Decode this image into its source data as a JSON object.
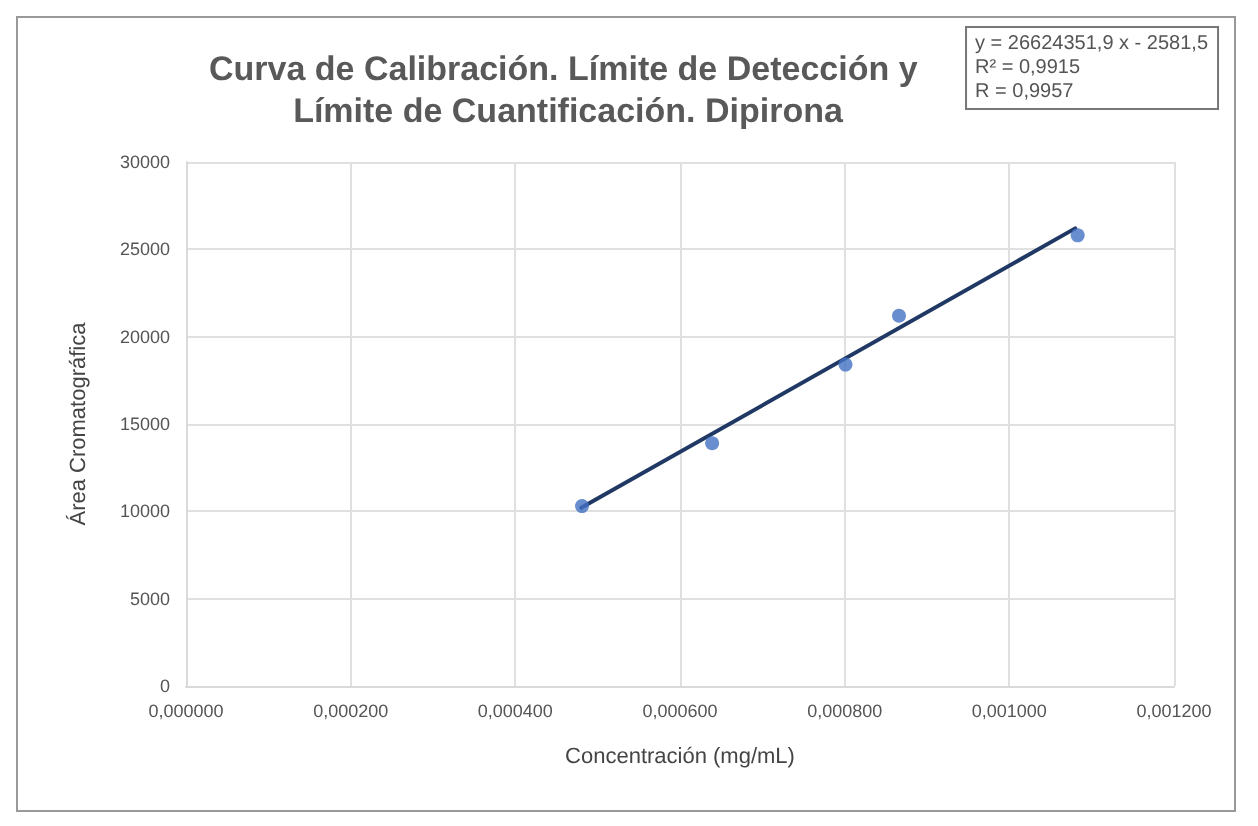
{
  "chart_data": {
    "type": "scatter",
    "title": "Curva de Calibración. Límite de Detección y Límite de Cuantificación. Dipirona",
    "xlabel": "Concentración (mg/mL)",
    "ylabel": "Área Cromatográfica",
    "annotations": [
      "y = 26624351,9 x - 2581,5",
      "R² = 0,9915",
      "R = 0,9957"
    ],
    "x": [
      0.000481,
      0.000639,
      0.000801,
      0.000866,
      0.001083
    ],
    "series": [
      {
        "color": "#4472c4",
        "values": [
          10300,
          13900,
          18400,
          21200,
          25800
        ]
      },
      {
        "type": "line",
        "color": "#203864",
        "x": [
          0.00048,
          0.00108
        ],
        "values": [
          10200,
          26200
        ],
        "marker": "none"
      }
    ],
    "marker": "circle",
    "grid": true,
    "xlim": [
      0,
      0.0012
    ],
    "xticks": [
      {
        "value": 0,
        "label": "0,000000"
      },
      {
        "value": 0.0002,
        "label": "0,000200"
      },
      {
        "value": 0.0004,
        "label": "0,000400"
      },
      {
        "value": 0.0006,
        "label": "0,000600"
      },
      {
        "value": 0.0008,
        "label": "0,000800"
      },
      {
        "value": 0.001,
        "label": "0,001000"
      },
      {
        "value": 0.0012,
        "label": "0,001200"
      }
    ],
    "ylim": [
      0,
      30000
    ],
    "yticks": [
      0,
      5000,
      10000,
      15000,
      20000,
      25000,
      30000
    ]
  }
}
